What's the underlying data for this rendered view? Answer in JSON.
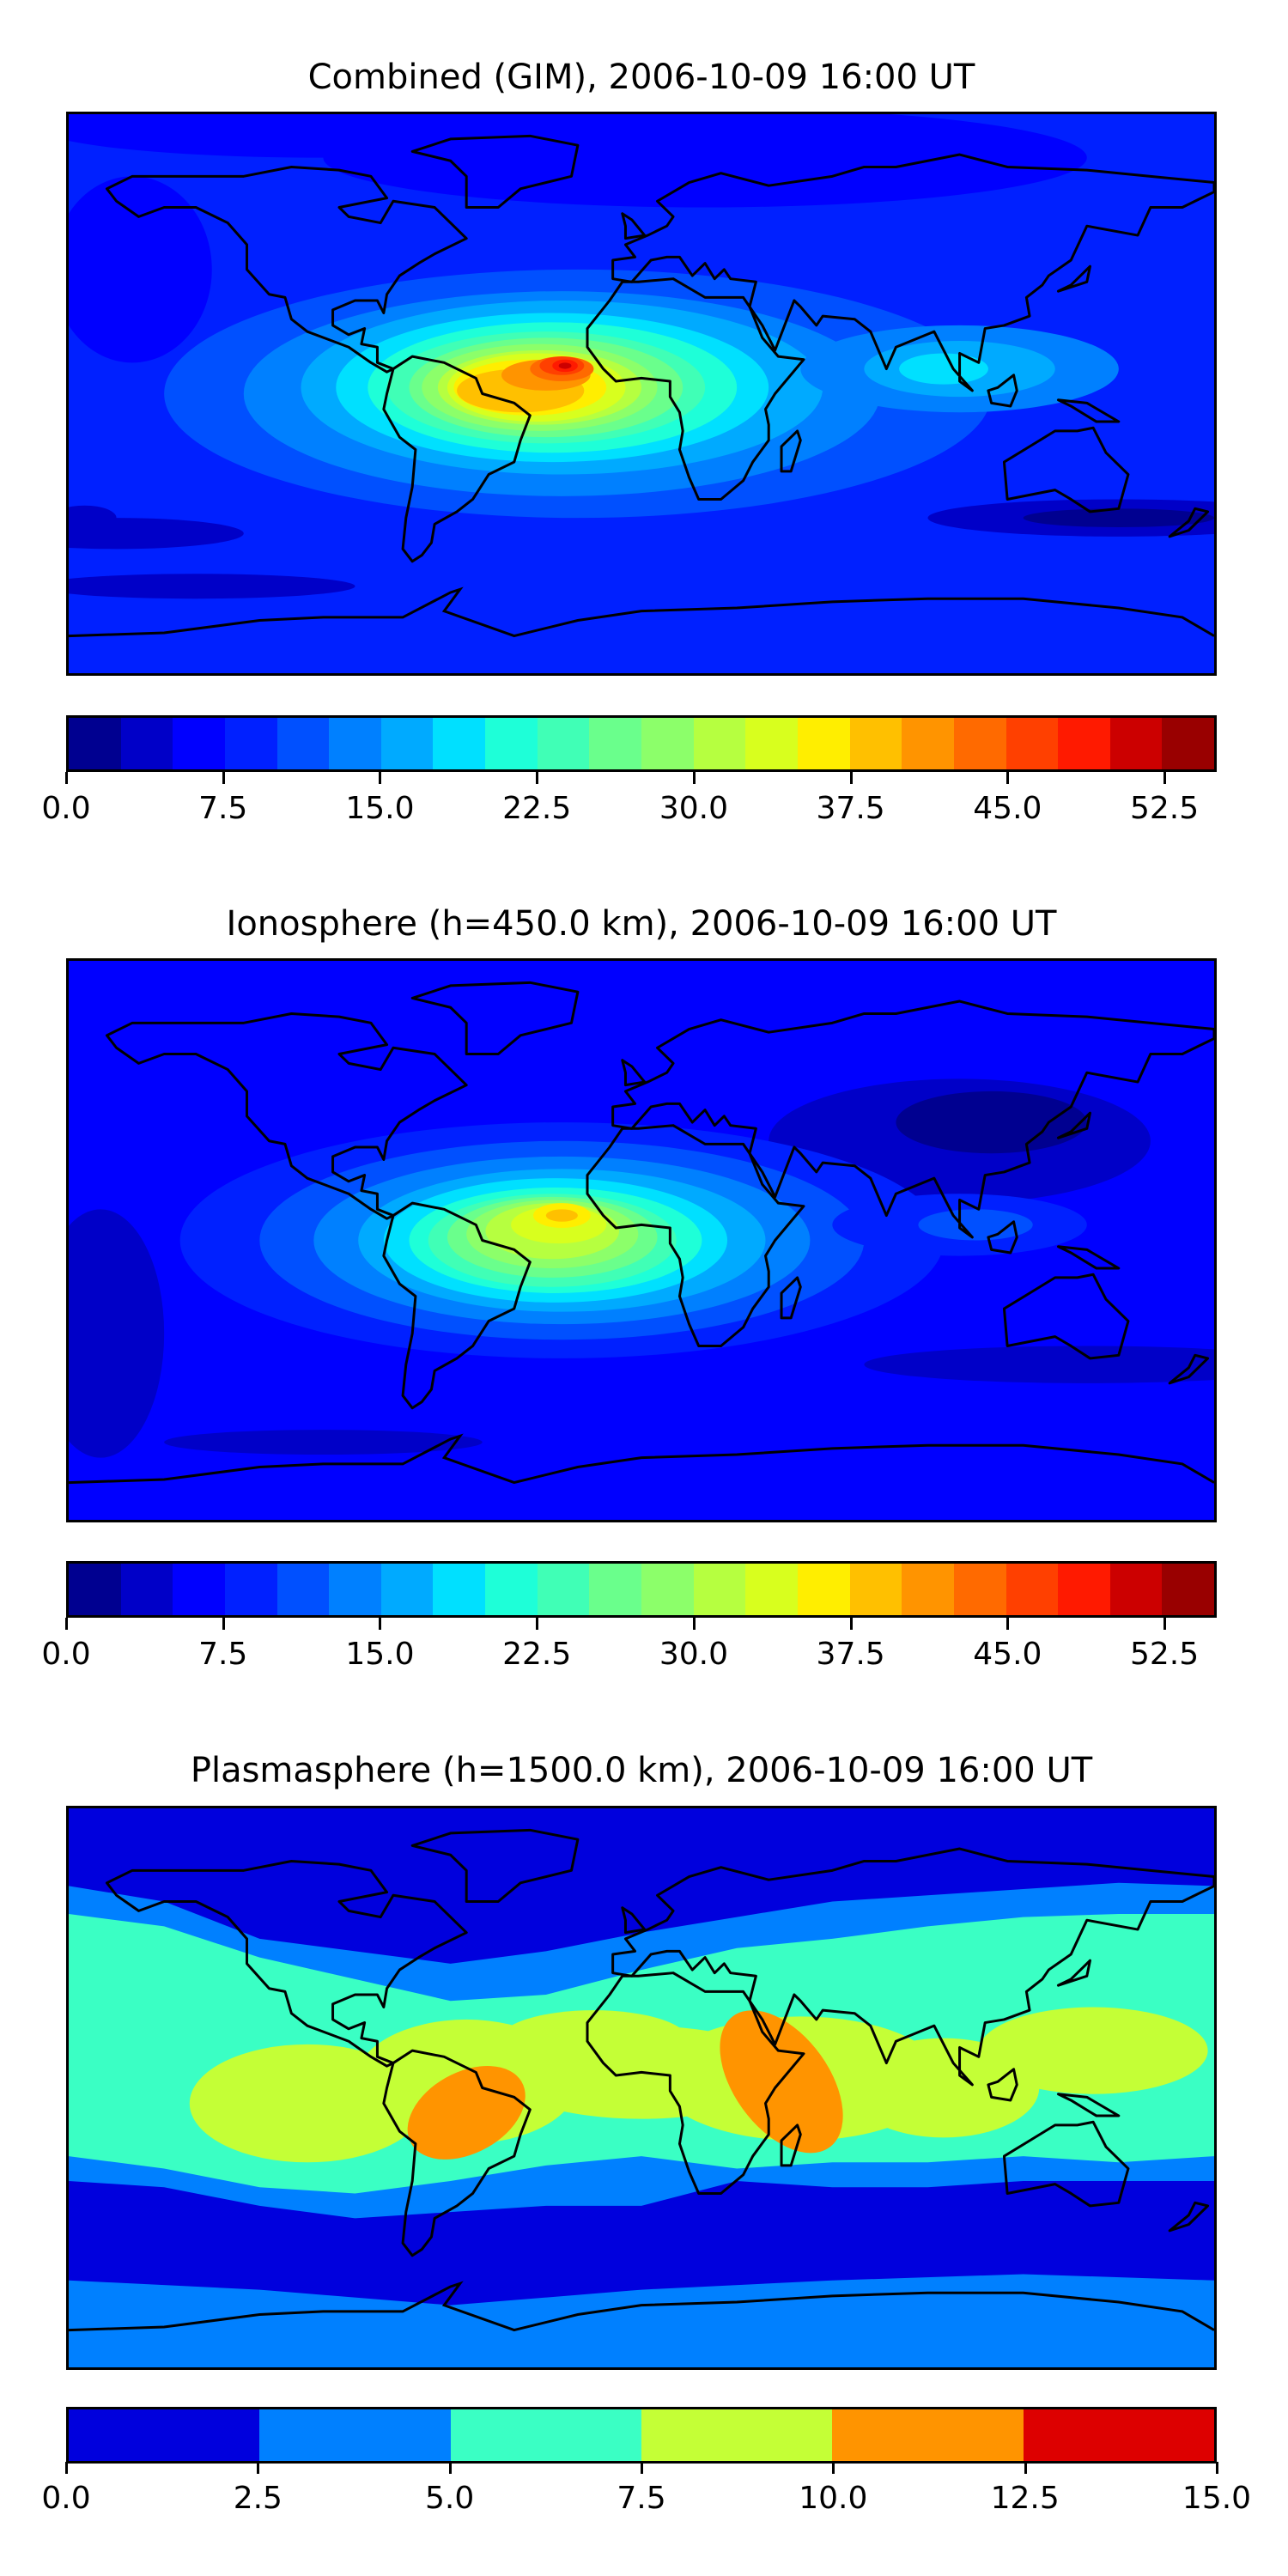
{
  "chart_data": [
    {
      "type": "heatmap",
      "title": "Combined (GIM), 2006-10-09 16:00 UT",
      "projection": "equirectangular world map with coastlines",
      "xlim": [
        -180,
        180
      ],
      "ylim": [
        -90,
        90
      ],
      "colorbar": {
        "range": [
          0,
          55
        ],
        "levels_step": 2.5,
        "ticks": [
          "0.0",
          "7.5",
          "15.0",
          "22.5",
          "30.0",
          "37.5",
          "45.0",
          "52.5"
        ],
        "tick_values": [
          0,
          7.5,
          15,
          22.5,
          30,
          37.5,
          45,
          52.5
        ],
        "colors": [
          "#000090",
          "#0000c8",
          "#0000ff",
          "#0020ff",
          "#0050ff",
          "#0080ff",
          "#00aaff",
          "#00e0ff",
          "#1effd8",
          "#40ffb6",
          "#6aff8c",
          "#8cff6a",
          "#b6ff40",
          "#d8ff1e",
          "#ffee00",
          "#ffc000",
          "#ff9400",
          "#ff6a00",
          "#ff4000",
          "#ff1a00",
          "#cc0000",
          "#990000"
        ]
      },
      "features": {
        "peak_value_approx": 52.5,
        "peak_location": "equatorial Atlantic / South America",
        "background_value_approx": 8
      }
    },
    {
      "type": "heatmap",
      "title": "Ionosphere  (h=450.0 km), 2006-10-09 16:00 UT",
      "projection": "equirectangular world map with coastlines",
      "xlim": [
        -180,
        180
      ],
      "ylim": [
        -90,
        90
      ],
      "colorbar": {
        "range": [
          0,
          55
        ],
        "levels_step": 2.5,
        "ticks": [
          "0.0",
          "7.5",
          "15.0",
          "22.5",
          "30.0",
          "37.5",
          "45.0",
          "52.5"
        ],
        "tick_values": [
          0,
          7.5,
          15,
          22.5,
          30,
          37.5,
          45,
          52.5
        ],
        "colors": [
          "#000090",
          "#0000c8",
          "#0000ff",
          "#0020ff",
          "#0050ff",
          "#0080ff",
          "#00aaff",
          "#00e0ff",
          "#1effd8",
          "#40ffb6",
          "#6aff8c",
          "#8cff6a",
          "#b6ff40",
          "#d8ff1e",
          "#ffee00",
          "#ffc000",
          "#ff9400",
          "#ff6a00",
          "#ff4000",
          "#ff1a00",
          "#cc0000",
          "#990000"
        ]
      },
      "features": {
        "peak_value_approx": 40,
        "peak_location": "equatorial Atlantic",
        "background_value_approx": 6
      }
    },
    {
      "type": "heatmap",
      "title": "Plasmasphere (h=1500.0 km), 2006-10-09 16:00 UT",
      "projection": "equirectangular world map with coastlines",
      "xlim": [
        -180,
        180
      ],
      "ylim": [
        -90,
        90
      ],
      "colorbar": {
        "range": [
          0,
          15
        ],
        "levels_step": 2.5,
        "ticks": [
          "0.0",
          "2.5",
          "5.0",
          "7.5",
          "10.0",
          "12.5",
          "15.0"
        ],
        "tick_values": [
          0,
          2.5,
          5,
          7.5,
          10,
          12.5,
          15
        ],
        "colors": [
          "#0000dd",
          "#0080ff",
          "#3affc4",
          "#c4ff36",
          "#ff9400",
          "#dd0000"
        ]
      },
      "features": {
        "peak_value_approx": 11,
        "peak_locations": [
          "South America",
          "East Africa"
        ],
        "background_value_approx": 3
      }
    }
  ]
}
